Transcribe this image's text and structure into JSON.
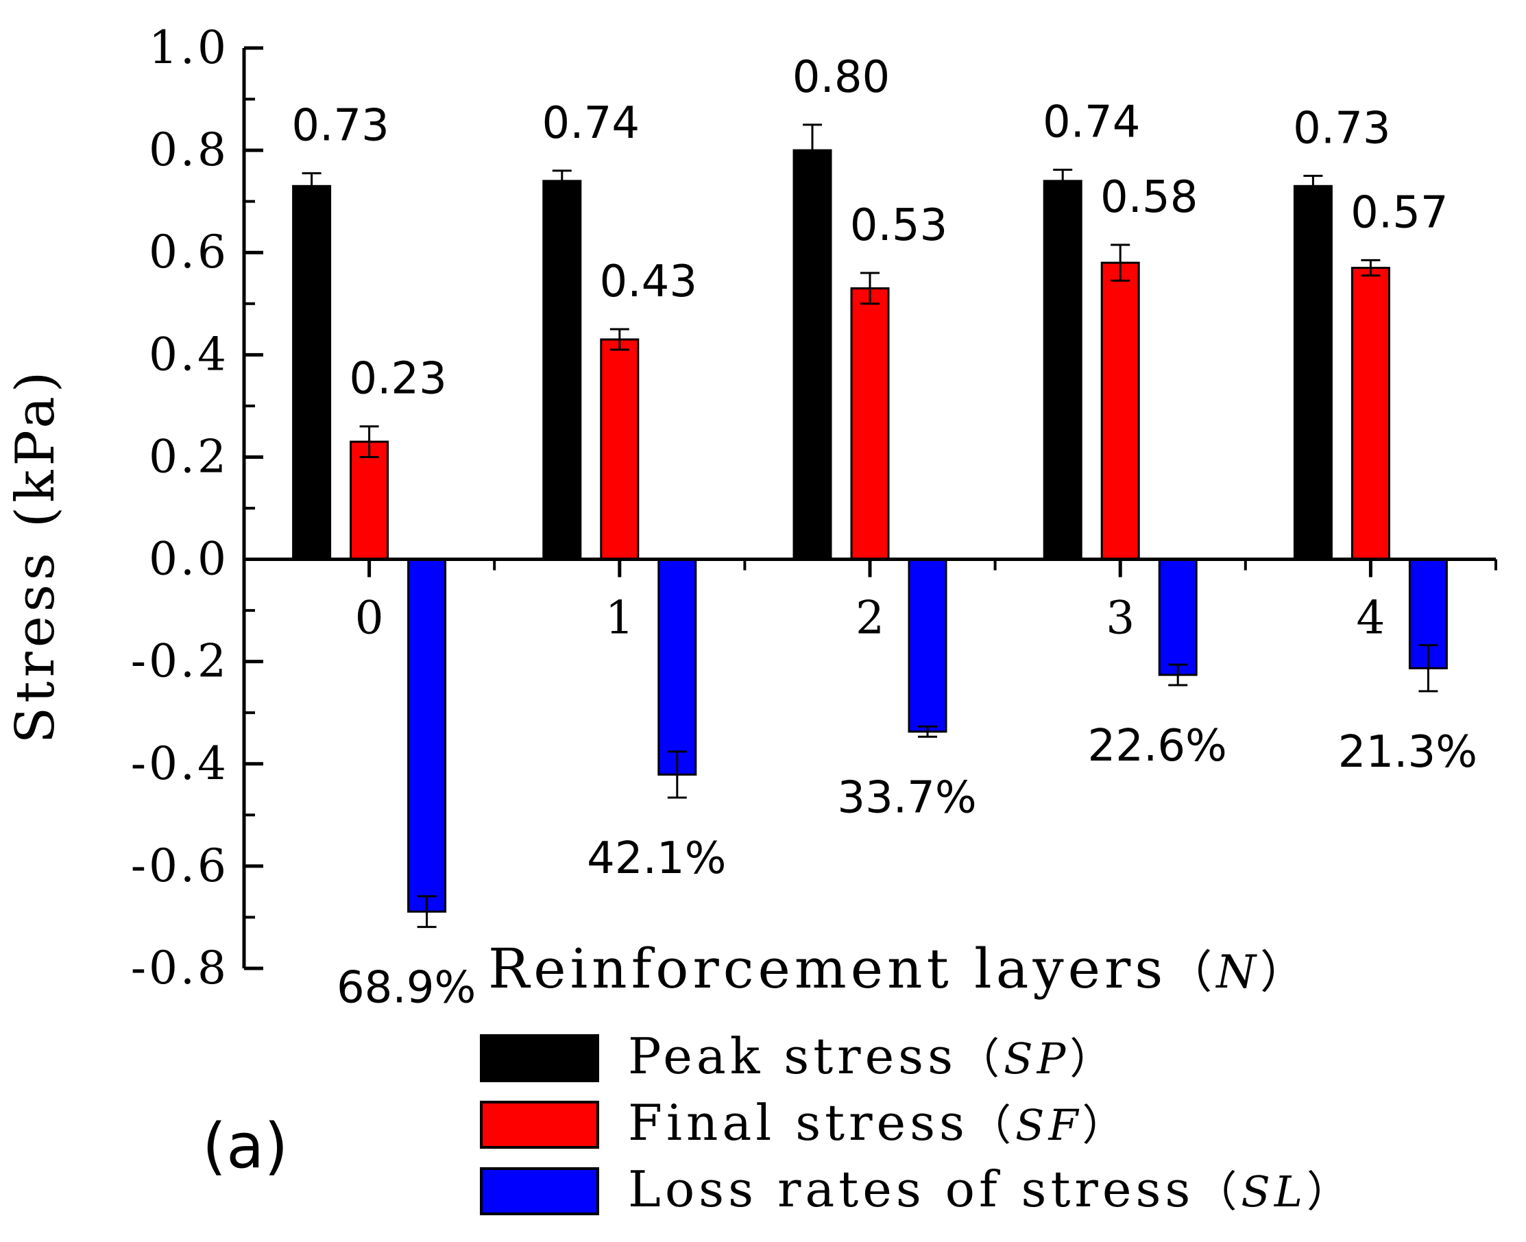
{
  "chart_data": {
    "type": "bar",
    "title": "",
    "panel_label": "(a)",
    "xlabel": "Reinforcement layers",
    "xlabel_symbol": "N",
    "ylabel": "Stress (kPa)",
    "categories": [
      "0",
      "1",
      "2",
      "3",
      "4"
    ],
    "ylim": [
      -0.8,
      1.0
    ],
    "yticks": [
      "1.0",
      "0.8",
      "0.6",
      "0.4",
      "0.2",
      "0.0",
      "-0.2",
      "-0.4",
      "-0.6",
      "-0.8"
    ],
    "ytick_values": [
      1.0,
      0.8,
      0.6,
      0.4,
      0.2,
      0.0,
      -0.2,
      -0.4,
      -0.6,
      -0.8
    ],
    "grid": false,
    "legend_position": "bottom",
    "series": [
      {
        "name": "Peak stress",
        "symbol": "SP",
        "color": "#000000",
        "values": [
          0.73,
          0.74,
          0.8,
          0.74,
          0.73
        ],
        "errors": [
          0.025,
          0.02,
          0.05,
          0.022,
          0.02
        ],
        "labels": [
          "0.73",
          "0.74",
          "0.80",
          "0.74",
          "0.73"
        ]
      },
      {
        "name": "Final stress",
        "symbol": "SF",
        "color": "#ff0000",
        "values": [
          0.23,
          0.43,
          0.53,
          0.58,
          0.57
        ],
        "errors": [
          0.03,
          0.02,
          0.03,
          0.035,
          0.015
        ],
        "labels": [
          "0.23",
          "0.43",
          "0.53",
          "0.58",
          "0.57"
        ]
      },
      {
        "name": "Loss rates of stress",
        "symbol": "SL",
        "color": "#0000ff",
        "values": [
          -0.689,
          -0.421,
          -0.337,
          -0.226,
          -0.213
        ],
        "errors": [
          0.03,
          0.045,
          0.01,
          0.02,
          0.045
        ],
        "labels": [
          "68.9%",
          "42.1%",
          "33.7%",
          "22.6%",
          "21.3%"
        ]
      }
    ]
  }
}
